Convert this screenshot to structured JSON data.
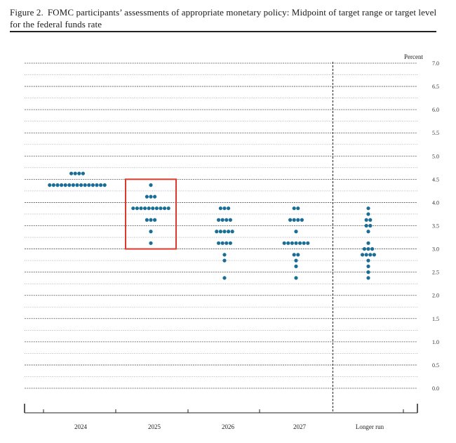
{
  "figure": {
    "number": "Figure 2.",
    "title": "FOMC participants’ assessments of appropriate monetary policy: Midpoint of target range or target level for the federal funds rate"
  },
  "chart_data": {
    "type": "scatter",
    "ylabel": "Percent",
    "ylim": [
      0,
      7.0
    ],
    "y_ticks": [
      "0.0",
      "0.5",
      "1.0",
      "1.5",
      "2.0",
      "2.5",
      "3.0",
      "3.5",
      "4.0",
      "4.5",
      "5.0",
      "5.5",
      "6.0",
      "6.5",
      "7.0"
    ],
    "categories": [
      "2024",
      "2025",
      "2026",
      "2027",
      "Longer run"
    ],
    "dot_color": "#1a6e96",
    "highlight": {
      "category": "2025",
      "color": "#d93a2b",
      "y_range": [
        3.0,
        4.5
      ]
    },
    "divider_before": "Longer run",
    "dots": [
      {
        "category": "2024",
        "counts": [
          {
            "y": 4.625,
            "count": 4
          },
          {
            "y": 4.375,
            "count": 15
          }
        ]
      },
      {
        "category": "2025",
        "counts": [
          {
            "y": 4.375,
            "count": 1
          },
          {
            "y": 4.125,
            "count": 3
          },
          {
            "y": 3.875,
            "count": 10
          },
          {
            "y": 3.625,
            "count": 3
          },
          {
            "y": 3.375,
            "count": 1
          },
          {
            "y": 3.125,
            "count": 1
          }
        ]
      },
      {
        "category": "2026",
        "counts": [
          {
            "y": 3.875,
            "count": 3
          },
          {
            "y": 3.625,
            "count": 4
          },
          {
            "y": 3.375,
            "count": 5
          },
          {
            "y": 3.125,
            "count": 4
          },
          {
            "y": 2.875,
            "count": 1
          },
          {
            "y": 2.75,
            "count": 1
          },
          {
            "y": 2.375,
            "count": 1
          }
        ]
      },
      {
        "category": "2027",
        "counts": [
          {
            "y": 3.875,
            "count": 2
          },
          {
            "y": 3.625,
            "count": 4
          },
          {
            "y": 3.375,
            "count": 1
          },
          {
            "y": 3.125,
            "count": 7
          },
          {
            "y": 2.875,
            "count": 2
          },
          {
            "y": 2.75,
            "count": 1
          },
          {
            "y": 2.625,
            "count": 1
          },
          {
            "y": 2.375,
            "count": 1
          }
        ]
      },
      {
        "category": "Longer run",
        "counts": [
          {
            "y": 3.875,
            "count": 1
          },
          {
            "y": 3.75,
            "count": 1
          },
          {
            "y": 3.625,
            "count": 2
          },
          {
            "y": 3.5,
            "count": 2
          },
          {
            "y": 3.375,
            "count": 1
          },
          {
            "y": 3.125,
            "count": 1
          },
          {
            "y": 3.0,
            "count": 3
          },
          {
            "y": 2.875,
            "count": 4
          },
          {
            "y": 2.75,
            "count": 1
          },
          {
            "y": 2.625,
            "count": 1
          },
          {
            "y": 2.5,
            "count": 1
          },
          {
            "y": 2.375,
            "count": 1
          }
        ]
      }
    ]
  }
}
